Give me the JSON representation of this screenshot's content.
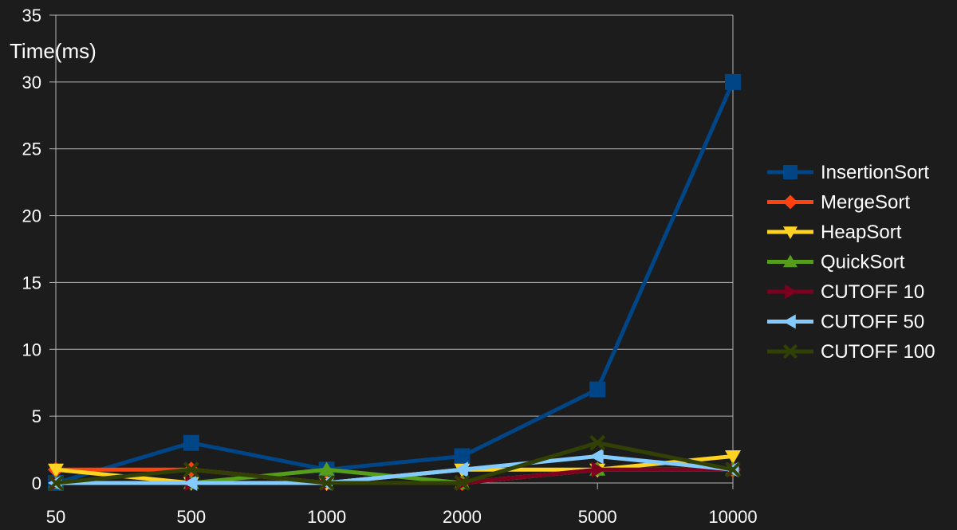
{
  "chart_data": {
    "type": "line",
    "ylabel": "Time(ms)",
    "xlabel": "",
    "categories": [
      "50",
      "500",
      "1000",
      "2000",
      "5000",
      "10000"
    ],
    "ylim": [
      0,
      35
    ],
    "yticks": [
      0,
      5,
      10,
      15,
      20,
      25,
      30,
      35
    ],
    "grid": true,
    "legend_position": "right",
    "series": [
      {
        "name": "InsertionSort",
        "color": "#004586",
        "marker": "square",
        "values": [
          0,
          3,
          1,
          2,
          7,
          30
        ]
      },
      {
        "name": "MergeSort",
        "color": "#ff420e",
        "marker": "diamond",
        "values": [
          1,
          1,
          0,
          0,
          1,
          1
        ]
      },
      {
        "name": "HeapSort",
        "color": "#ffd320",
        "marker": "triangle-down",
        "values": [
          1,
          0,
          0,
          1,
          1,
          2
        ]
      },
      {
        "name": "QuickSort",
        "color": "#579d1c",
        "marker": "triangle-up",
        "values": [
          0,
          0,
          1,
          0,
          1,
          1
        ]
      },
      {
        "name": "CUTOFF 10",
        "color": "#7e0021",
        "marker": "triangle-right",
        "values": [
          0,
          0,
          0,
          0,
          1,
          1
        ]
      },
      {
        "name": "CUTOFF 50",
        "color": "#83caff",
        "marker": "triangle-left",
        "values": [
          0,
          0,
          0,
          1,
          2,
          1
        ]
      },
      {
        "name": "CUTOFF 100",
        "color": "#314004",
        "marker": "x",
        "values": [
          0,
          1,
          0,
          0,
          3,
          1
        ]
      }
    ]
  }
}
